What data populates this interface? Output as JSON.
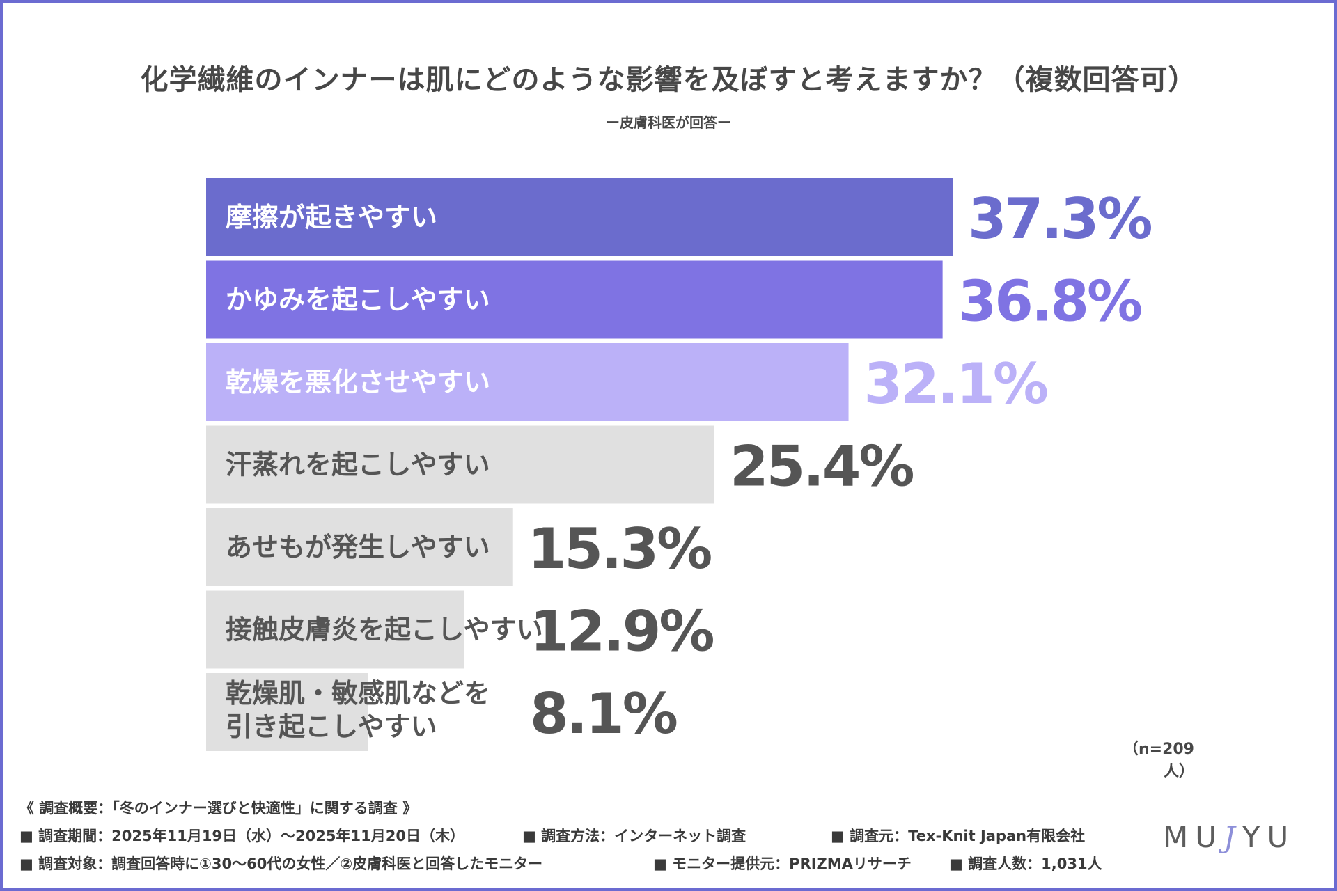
{
  "title": "化学繊維のインナーは肌にどのような影響を及ぼすと考えますか？（複数回答可）",
  "subtitle": "ー皮膚科医が回答ー",
  "sample_size": "（n=209人）",
  "colors": {
    "frame": "#6b6bd1",
    "bar_top1": "#6b6ccd",
    "bar_top2": "#7f73e3",
    "bar_top3": "#bbb1f8",
    "bar_other": "#e0e0e0",
    "text_dark": "#555555"
  },
  "chart_data": {
    "type": "bar",
    "orientation": "horizontal",
    "title": "化学繊維のインナーは肌にどのような影響を及ぼすと考えますか？（複数回答可）",
    "categories": [
      "摩擦が起きやすい",
      "かゆみを起こしやすい",
      "乾燥を悪化させやすい",
      "汗蒸れを起こしやすい",
      "あせもが発生しやすい",
      "接触皮膚炎を起こしやすい",
      "乾燥肌・敏感肌などを\n引き起こしやすい"
    ],
    "values": [
      37.3,
      36.8,
      32.1,
      25.4,
      15.3,
      12.9,
      8.1
    ],
    "value_labels": [
      "37.3%",
      "36.8%",
      "32.1%",
      "25.4%",
      "15.3%",
      "12.9%",
      "8.1%"
    ],
    "unit": "%",
    "xlim": [
      0,
      37.3
    ]
  },
  "footer": {
    "heading": "《 調査概要：「冬のインナー選びと快適性」に関する調査 》",
    "items_row1": [
      "■ 調査期間：2025年11月19日（水）〜2025年11月20日（木）",
      "■ 調査方法：インターネット調査",
      "■ 調査元：Tex-Knit Japan有限会社"
    ],
    "items_row2": [
      "■ 調査対象：調査回答時に①30〜60代の女性／②皮膚科医と回答したモニター",
      "■ モニター提供元：PRIZMAリサーチ",
      "■ 調査人数：1,031人"
    ]
  },
  "logo": {
    "left": "MU",
    "mark": "J",
    "right": "YU"
  }
}
